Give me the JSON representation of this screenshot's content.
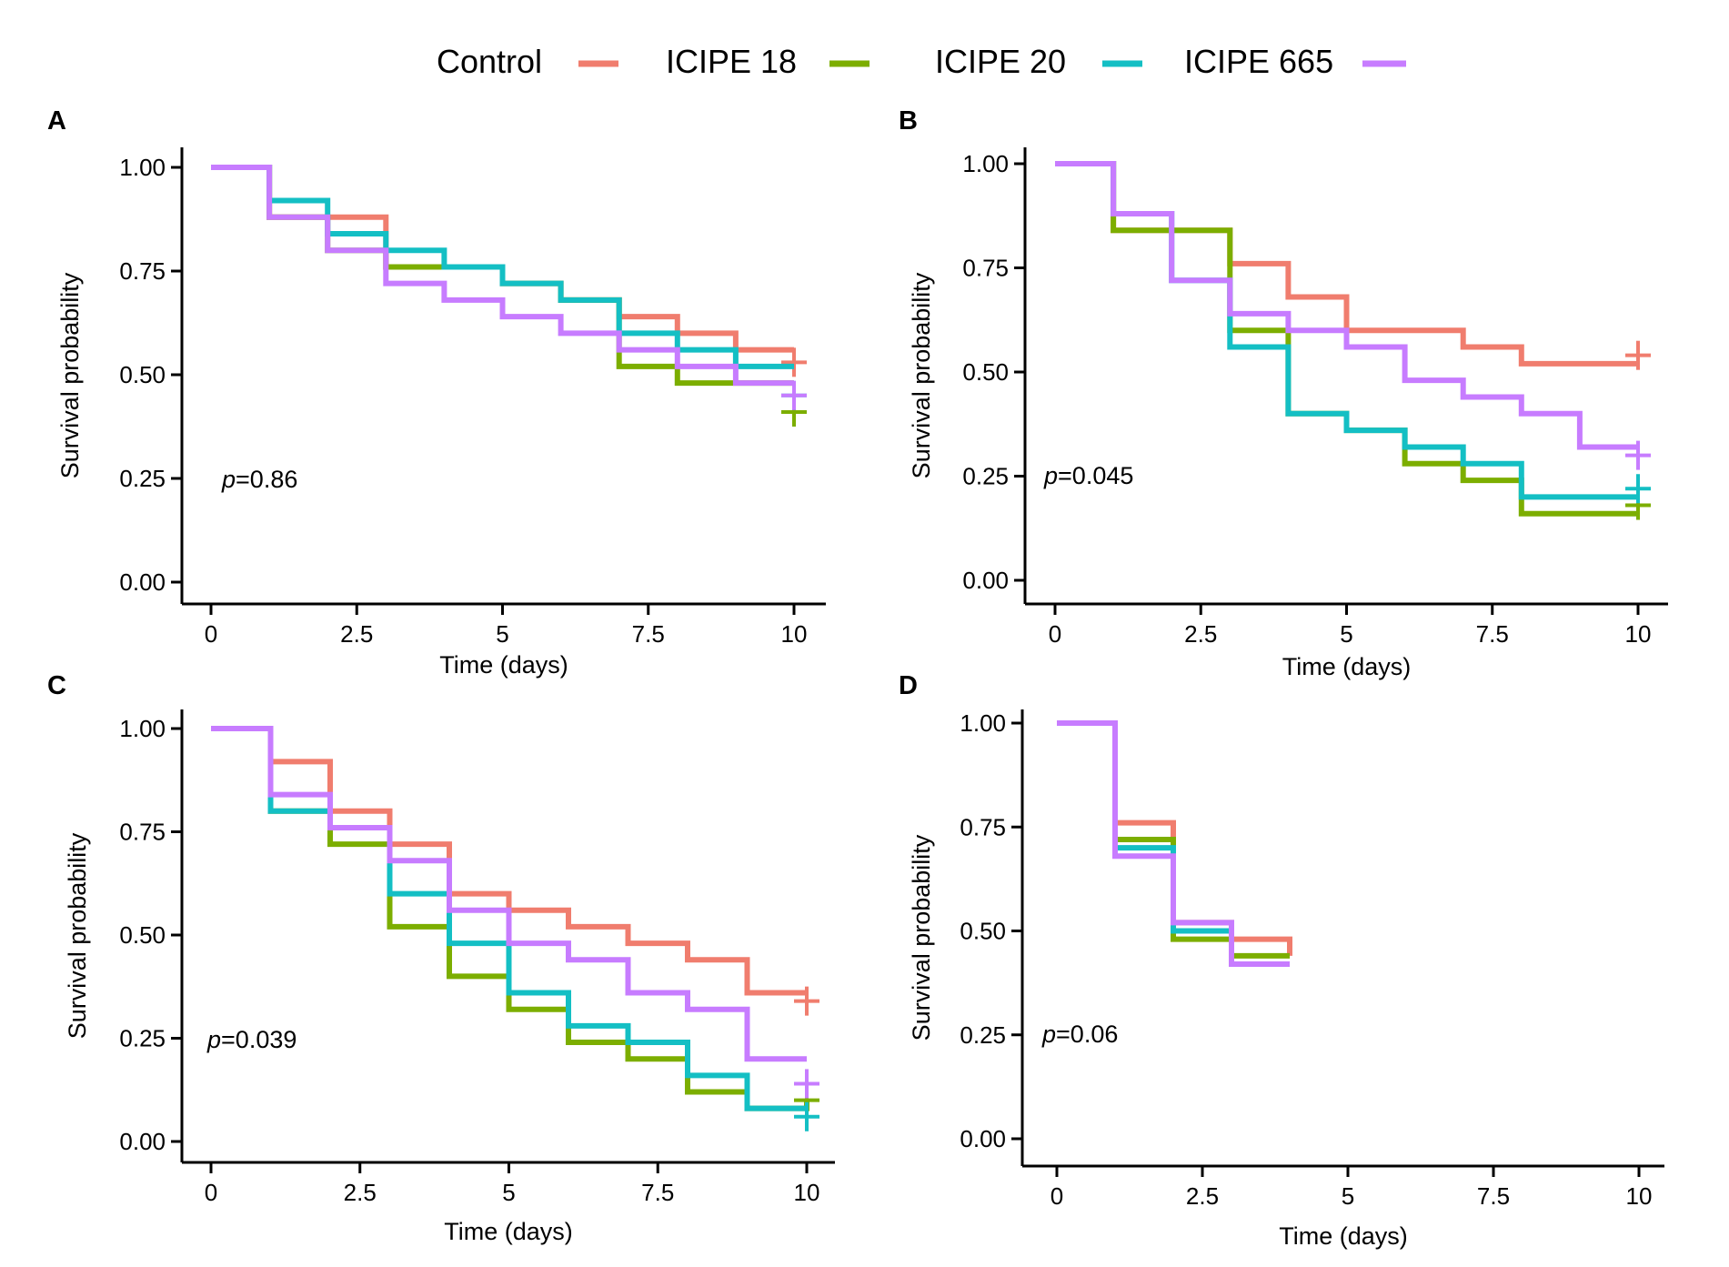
{
  "chart_data": {
    "type": "line",
    "legend": {
      "position": "top",
      "entries": [
        {
          "name": "Control",
          "color": "#F07D6E"
        },
        {
          "name": "ICIPE 18",
          "color": "#7CAE00"
        },
        {
          "name": "ICIPE 20",
          "color": "#14BFC4"
        },
        {
          "name": "ICIPE 665",
          "color": "#C77CFF"
        }
      ]
    },
    "panels": [
      {
        "letter": "A",
        "xlabel": "Time (days)",
        "ylabel": "Survival probability",
        "xlim": [
          0,
          10
        ],
        "ylim": [
          0,
          1
        ],
        "xticks": [
          0,
          2.5,
          5,
          7.5,
          10
        ],
        "xtick_labels": [
          "0",
          "2.5",
          "5",
          "7.5",
          "10"
        ],
        "yticks": [
          0,
          0.25,
          0.5,
          0.75,
          1
        ],
        "ytick_labels": [
          "0.00",
          "0.25",
          "0.50",
          "0.75",
          "1.00"
        ],
        "pvalue": "0.86",
        "series": [
          {
            "name": "Control",
            "color": "#F07D6E",
            "steps": [
              [
                0,
                1
              ],
              [
                1,
                0.88
              ],
              [
                2,
                0.88
              ],
              [
                3,
                0.76
              ],
              [
                4,
                0.76
              ],
              [
                5,
                0.72
              ],
              [
                6,
                0.68
              ],
              [
                7,
                0.64
              ],
              [
                8,
                0.6
              ],
              [
                9,
                0.56
              ],
              [
                10,
                0.56
              ]
            ],
            "censor": [
              [
                10,
                0.53
              ]
            ]
          },
          {
            "name": "ICIPE 18",
            "color": "#7CAE00",
            "steps": [
              [
                0,
                1
              ],
              [
                1,
                0.88
              ],
              [
                2,
                0.8
              ],
              [
                3,
                0.76
              ],
              [
                4,
                0.76
              ],
              [
                5,
                0.72
              ],
              [
                6,
                0.68
              ],
              [
                7,
                0.52
              ],
              [
                8,
                0.48
              ],
              [
                9,
                0.48
              ],
              [
                10,
                0.48
              ]
            ],
            "censor": [
              [
                10,
                0.41
              ]
            ]
          },
          {
            "name": "ICIPE 20",
            "color": "#14BFC4",
            "steps": [
              [
                0,
                1
              ],
              [
                1,
                0.92
              ],
              [
                2,
                0.84
              ],
              [
                3,
                0.8
              ],
              [
                4,
                0.76
              ],
              [
                5,
                0.72
              ],
              [
                6,
                0.68
              ],
              [
                7,
                0.6
              ],
              [
                8,
                0.56
              ],
              [
                9,
                0.52
              ],
              [
                10,
                0.52
              ]
            ],
            "censor": [
              [
                10,
                0.45
              ]
            ]
          },
          {
            "name": "ICIPE 665",
            "color": "#C77CFF",
            "steps": [
              [
                0,
                1
              ],
              [
                1,
                0.88
              ],
              [
                2,
                0.8
              ],
              [
                3,
                0.72
              ],
              [
                4,
                0.68
              ],
              [
                5,
                0.64
              ],
              [
                6,
                0.6
              ],
              [
                7,
                0.56
              ],
              [
                8,
                0.52
              ],
              [
                9,
                0.48
              ],
              [
                10,
                0.48
              ]
            ],
            "censor": [
              [
                10,
                0.45
              ]
            ]
          }
        ]
      },
      {
        "letter": "B",
        "xlabel": "Time (days)",
        "ylabel": "Survival probability",
        "xlim": [
          0,
          10
        ],
        "ylim": [
          0,
          1
        ],
        "xticks": [
          0,
          2.5,
          5,
          7.5,
          10
        ],
        "xtick_labels": [
          "0",
          "2.5",
          "5",
          "7.5",
          "10"
        ],
        "yticks": [
          0,
          0.25,
          0.5,
          0.75,
          1
        ],
        "ytick_labels": [
          "0.00",
          "0.25",
          "0.50",
          "0.75",
          "1.00"
        ],
        "pvalue": "0.045",
        "series": [
          {
            "name": "Control",
            "color": "#F07D6E",
            "steps": [
              [
                0,
                1
              ],
              [
                1,
                0.84
              ],
              [
                2,
                0.84
              ],
              [
                3,
                0.76
              ],
              [
                4,
                0.68
              ],
              [
                5,
                0.6
              ],
              [
                6,
                0.6
              ],
              [
                7,
                0.56
              ],
              [
                8,
                0.52
              ],
              [
                9,
                0.52
              ],
              [
                10,
                0.52
              ]
            ],
            "censor": [
              [
                10,
                0.54
              ]
            ]
          },
          {
            "name": "ICIPE 18",
            "color": "#7CAE00",
            "steps": [
              [
                0,
                1
              ],
              [
                1,
                0.84
              ],
              [
                2,
                0.84
              ],
              [
                3,
                0.6
              ],
              [
                4,
                0.4
              ],
              [
                5,
                0.36
              ],
              [
                6,
                0.28
              ],
              [
                7,
                0.24
              ],
              [
                8,
                0.16
              ],
              [
                9,
                0.16
              ],
              [
                10,
                0.16
              ]
            ],
            "censor": [
              [
                10,
                0.18
              ]
            ]
          },
          {
            "name": "ICIPE 20",
            "color": "#14BFC4",
            "steps": [
              [
                0,
                1
              ],
              [
                1,
                0.88
              ],
              [
                2,
                0.72
              ],
              [
                3,
                0.56
              ],
              [
                4,
                0.4
              ],
              [
                5,
                0.36
              ],
              [
                6,
                0.32
              ],
              [
                7,
                0.28
              ],
              [
                8,
                0.2
              ],
              [
                9,
                0.2
              ],
              [
                10,
                0.2
              ]
            ],
            "censor": [
              [
                10,
                0.22
              ]
            ]
          },
          {
            "name": "ICIPE 665",
            "color": "#C77CFF",
            "steps": [
              [
                0,
                1
              ],
              [
                1,
                0.88
              ],
              [
                2,
                0.72
              ],
              [
                3,
                0.64
              ],
              [
                4,
                0.6
              ],
              [
                5,
                0.56
              ],
              [
                6,
                0.48
              ],
              [
                7,
                0.44
              ],
              [
                8,
                0.4
              ],
              [
                9,
                0.32
              ],
              [
                10,
                0.32
              ]
            ],
            "censor": [
              [
                10,
                0.3
              ]
            ]
          }
        ]
      },
      {
        "letter": "C",
        "xlabel": "Time (days)",
        "ylabel": "Survival probability",
        "xlim": [
          0,
          10
        ],
        "ylim": [
          0,
          1
        ],
        "xticks": [
          0,
          2.5,
          5,
          7.5,
          10
        ],
        "xtick_labels": [
          "0",
          "2.5",
          "5",
          "7.5",
          "10"
        ],
        "yticks": [
          0,
          0.25,
          0.5,
          0.75,
          1
        ],
        "ytick_labels": [
          "0.00",
          "0.25",
          "0.50",
          "0.75",
          "1.00"
        ],
        "pvalue": "0.039",
        "series": [
          {
            "name": "Control",
            "color": "#F07D6E",
            "steps": [
              [
                0,
                1
              ],
              [
                1,
                0.92
              ],
              [
                2,
                0.8
              ],
              [
                3,
                0.72
              ],
              [
                4,
                0.6
              ],
              [
                5,
                0.56
              ],
              [
                6,
                0.52
              ],
              [
                7,
                0.48
              ],
              [
                8,
                0.44
              ],
              [
                9,
                0.36
              ],
              [
                10,
                0.36
              ]
            ],
            "censor": [
              [
                10,
                0.34
              ]
            ]
          },
          {
            "name": "ICIPE 18",
            "color": "#7CAE00",
            "steps": [
              [
                0,
                1
              ],
              [
                1,
                0.8
              ],
              [
                2,
                0.72
              ],
              [
                3,
                0.52
              ],
              [
                4,
                0.4
              ],
              [
                5,
                0.32
              ],
              [
                6,
                0.24
              ],
              [
                7,
                0.2
              ],
              [
                8,
                0.12
              ],
              [
                9,
                0.08
              ],
              [
                10,
                0.1
              ]
            ],
            "censor": [
              [
                10,
                0.1
              ]
            ]
          },
          {
            "name": "ICIPE 20",
            "color": "#14BFC4",
            "steps": [
              [
                0,
                1
              ],
              [
                1,
                0.8
              ],
              [
                2,
                0.76
              ],
              [
                3,
                0.6
              ],
              [
                4,
                0.48
              ],
              [
                5,
                0.36
              ],
              [
                6,
                0.28
              ],
              [
                7,
                0.24
              ],
              [
                8,
                0.16
              ],
              [
                9,
                0.08
              ],
              [
                10,
                0.08
              ]
            ],
            "censor": [
              [
                10,
                0.06
              ]
            ]
          },
          {
            "name": "ICIPE 665",
            "color": "#C77CFF",
            "steps": [
              [
                0,
                1
              ],
              [
                1,
                0.84
              ],
              [
                2,
                0.76
              ],
              [
                3,
                0.68
              ],
              [
                4,
                0.56
              ],
              [
                5,
                0.48
              ],
              [
                6,
                0.44
              ],
              [
                7,
                0.36
              ],
              [
                8,
                0.32
              ],
              [
                9,
                0.2
              ],
              [
                10,
                0.2
              ]
            ],
            "censor": [
              [
                10,
                0.14
              ]
            ]
          }
        ]
      },
      {
        "letter": "D",
        "xlabel": "Time (days)",
        "ylabel": "Survival probability",
        "xlim": [
          0,
          10
        ],
        "ylim": [
          0,
          1
        ],
        "xticks": [
          0,
          2.5,
          5,
          7.5,
          10
        ],
        "xtick_labels": [
          "0",
          "2.5",
          "5",
          "7.5",
          "10"
        ],
        "yticks": [
          0,
          0.25,
          0.5,
          0.75,
          1
        ],
        "ytick_labels": [
          "0.00",
          "0.25",
          "0.50",
          "0.75",
          "1.00"
        ],
        "pvalue": "0.06",
        "series": [
          {
            "name": "Control",
            "color": "#F07D6E",
            "steps": [
              [
                0,
                1
              ],
              [
                1,
                0.76
              ],
              [
                2,
                0.52
              ],
              [
                3,
                0.48
              ],
              [
                4,
                0.44
              ]
            ],
            "censor": []
          },
          {
            "name": "ICIPE 18",
            "color": "#7CAE00",
            "steps": [
              [
                0,
                1
              ],
              [
                1,
                0.72
              ],
              [
                2,
                0.48
              ],
              [
                3,
                0.44
              ],
              [
                4,
                0.44
              ]
            ],
            "censor": []
          },
          {
            "name": "ICIPE 20",
            "color": "#14BFC4",
            "steps": [
              [
                0,
                1
              ],
              [
                1,
                0.7
              ],
              [
                2,
                0.5
              ],
              [
                3,
                0.42
              ]
            ],
            "censor": []
          },
          {
            "name": "ICIPE 665",
            "color": "#C77CFF",
            "steps": [
              [
                0,
                1
              ],
              [
                1,
                0.68
              ],
              [
                2,
                0.52
              ],
              [
                3,
                0.42
              ],
              [
                4,
                0.42
              ]
            ],
            "censor": []
          }
        ]
      }
    ]
  }
}
